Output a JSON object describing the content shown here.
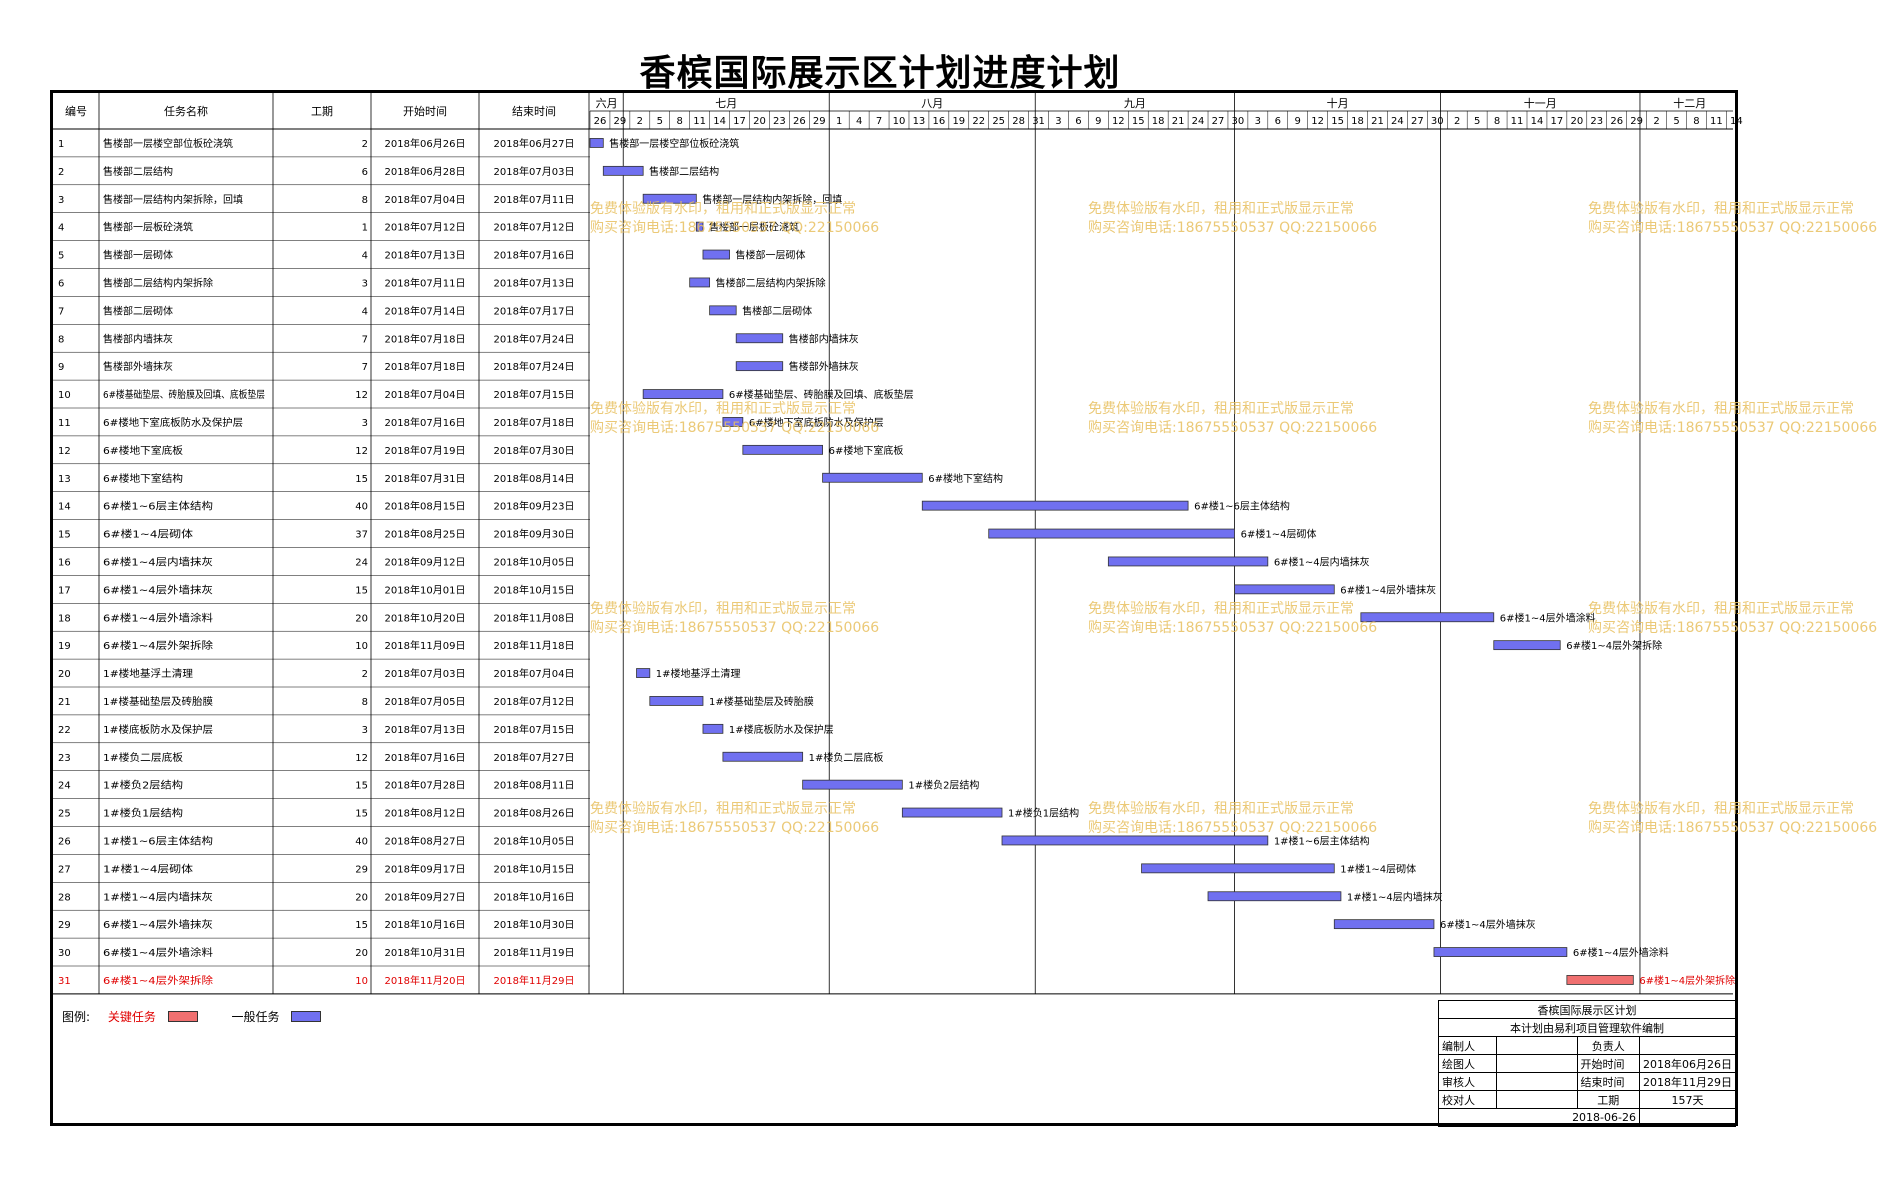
{
  "title": "香槟国际展示区计划进度计划",
  "columns": {
    "id": "编号",
    "name": "任务名称",
    "dur": "工期",
    "start": "开始时间",
    "end": "结束时间"
  },
  "months": [
    {
      "label": "六月",
      "start": "2018-06-26",
      "days": 5
    },
    {
      "label": "七月",
      "start": "2018-07-01",
      "days": 31
    },
    {
      "label": "八月",
      "start": "2018-08-01",
      "days": 31
    },
    {
      "label": "九月",
      "start": "2018-09-01",
      "days": 30
    },
    {
      "label": "十月",
      "start": "2018-10-01",
      "days": 31
    },
    {
      "label": "十一月",
      "start": "2018-11-01",
      "days": 30
    },
    {
      "label": "十二月",
      "start": "2018-12-01",
      "days": 15
    }
  ],
  "day_ticks": [
    26,
    29,
    2,
    5,
    8,
    11,
    14,
    17,
    20,
    23,
    26,
    29,
    1,
    4,
    7,
    10,
    13,
    16,
    19,
    22,
    25,
    28,
    31,
    3,
    6,
    9,
    12,
    15,
    18,
    21,
    24,
    27,
    30,
    3,
    6,
    9,
    12,
    15,
    18,
    21,
    24,
    27,
    30,
    2,
    5,
    8,
    11,
    14,
    17,
    20,
    23,
    26,
    29,
    2,
    5,
    8,
    11,
    14
  ],
  "chart_data": {
    "type": "gantt",
    "title": "香槟国际展示区计划进度计划",
    "x_range": [
      "2018-06-26",
      "2018-12-15"
    ],
    "tasks": [
      {
        "id": "1",
        "name": "售楼部一层楼空部位板砼浇筑",
        "dur": 2,
        "start": "2018年06月26日",
        "end": "2018年06月27日",
        "s": "2018-06-26",
        "e": "2018-06-27",
        "critical": false
      },
      {
        "id": "2",
        "name": "售楼部二层结构",
        "dur": 6,
        "start": "2018年06月28日",
        "end": "2018年07月03日",
        "s": "2018-06-28",
        "e": "2018-07-03",
        "critical": false
      },
      {
        "id": "3",
        "name": "售楼部一层结构内架拆除，回填",
        "dur": 8,
        "start": "2018年07月04日",
        "end": "2018年07月11日",
        "s": "2018-07-04",
        "e": "2018-07-11",
        "critical": false
      },
      {
        "id": "4",
        "name": "售楼部一层板砼浇筑",
        "dur": 1,
        "start": "2018年07月12日",
        "end": "2018年07月12日",
        "s": "2018-07-12",
        "e": "2018-07-12",
        "critical": false
      },
      {
        "id": "5",
        "name": "售楼部一层砌体",
        "dur": 4,
        "start": "2018年07月13日",
        "end": "2018年07月16日",
        "s": "2018-07-13",
        "e": "2018-07-16",
        "critical": false
      },
      {
        "id": "6",
        "name": "售楼部二层结构内架拆除",
        "dur": 3,
        "start": "2018年07月11日",
        "end": "2018年07月13日",
        "s": "2018-07-11",
        "e": "2018-07-13",
        "critical": false
      },
      {
        "id": "7",
        "name": "售楼部二层砌体",
        "dur": 4,
        "start": "2018年07月14日",
        "end": "2018年07月17日",
        "s": "2018-07-14",
        "e": "2018-07-17",
        "critical": false
      },
      {
        "id": "8",
        "name": "售楼部内墙抹灰",
        "dur": 7,
        "start": "2018年07月18日",
        "end": "2018年07月24日",
        "s": "2018-07-18",
        "e": "2018-07-24",
        "critical": false
      },
      {
        "id": "9",
        "name": "售楼部外墙抹灰",
        "dur": 7,
        "start": "2018年07月18日",
        "end": "2018年07月24日",
        "s": "2018-07-18",
        "e": "2018-07-24",
        "critical": false
      },
      {
        "id": "10",
        "name": "6#楼基础垫层、砖胎膜及回填、底板垫层",
        "dur": 12,
        "start": "2018年07月04日",
        "end": "2018年07月15日",
        "s": "2018-07-04",
        "e": "2018-07-15",
        "critical": false
      },
      {
        "id": "11",
        "name": "6#楼地下室底板防水及保护层",
        "dur": 3,
        "start": "2018年07月16日",
        "end": "2018年07月18日",
        "s": "2018-07-16",
        "e": "2018-07-18",
        "critical": false
      },
      {
        "id": "12",
        "name": "6#楼地下室底板",
        "dur": 12,
        "start": "2018年07月19日",
        "end": "2018年07月30日",
        "s": "2018-07-19",
        "e": "2018-07-30",
        "critical": false
      },
      {
        "id": "13",
        "name": "6#楼地下室结构",
        "dur": 15,
        "start": "2018年07月31日",
        "end": "2018年08月14日",
        "s": "2018-07-31",
        "e": "2018-08-14",
        "critical": false
      },
      {
        "id": "14",
        "name": "6#楼1~6层主体结构",
        "dur": 40,
        "start": "2018年08月15日",
        "end": "2018年09月23日",
        "s": "2018-08-15",
        "e": "2018-09-23",
        "critical": false
      },
      {
        "id": "15",
        "name": "6#楼1~4层砌体",
        "dur": 37,
        "start": "2018年08月25日",
        "end": "2018年09月30日",
        "s": "2018-08-25",
        "e": "2018-09-30",
        "critical": false
      },
      {
        "id": "16",
        "name": "6#楼1~4层内墙抹灰",
        "dur": 24,
        "start": "2018年09月12日",
        "end": "2018年10月05日",
        "s": "2018-09-12",
        "e": "2018-10-05",
        "critical": false
      },
      {
        "id": "17",
        "name": "6#楼1~4层外墙抹灰",
        "dur": 15,
        "start": "2018年10月01日",
        "end": "2018年10月15日",
        "s": "2018-10-01",
        "e": "2018-10-15",
        "critical": false
      },
      {
        "id": "18",
        "name": "6#楼1~4层外墙涂料",
        "dur": 20,
        "start": "2018年10月20日",
        "end": "2018年11月08日",
        "s": "2018-10-20",
        "e": "2018-11-08",
        "critical": false
      },
      {
        "id": "19",
        "name": "6#楼1~4层外架拆除",
        "dur": 10,
        "start": "2018年11月09日",
        "end": "2018年11月18日",
        "s": "2018-11-09",
        "e": "2018-11-18",
        "critical": false
      },
      {
        "id": "20",
        "name": "1#楼地基浮土清理",
        "dur": 2,
        "start": "2018年07月03日",
        "end": "2018年07月04日",
        "s": "2018-07-03",
        "e": "2018-07-04",
        "critical": false
      },
      {
        "id": "21",
        "name": "1#楼基础垫层及砖胎膜",
        "dur": 8,
        "start": "2018年07月05日",
        "end": "2018年07月12日",
        "s": "2018-07-05",
        "e": "2018-07-12",
        "critical": false
      },
      {
        "id": "22",
        "name": "1#楼底板防水及保护层",
        "dur": 3,
        "start": "2018年07月13日",
        "end": "2018年07月15日",
        "s": "2018-07-13",
        "e": "2018-07-15",
        "critical": false
      },
      {
        "id": "23",
        "name": "1#楼负二层底板",
        "dur": 12,
        "start": "2018年07月16日",
        "end": "2018年07月27日",
        "s": "2018-07-16",
        "e": "2018-07-27",
        "critical": false
      },
      {
        "id": "24",
        "name": "1#楼负2层结构",
        "dur": 15,
        "start": "2018年07月28日",
        "end": "2018年08月11日",
        "s": "2018-07-28",
        "e": "2018-08-11",
        "critical": false
      },
      {
        "id": "25",
        "name": "1#楼负1层结构",
        "dur": 15,
        "start": "2018年08月12日",
        "end": "2018年08月26日",
        "s": "2018-08-12",
        "e": "2018-08-26",
        "critical": false
      },
      {
        "id": "26",
        "name": "1#楼1~6层主体结构",
        "dur": 40,
        "start": "2018年08月27日",
        "end": "2018年10月05日",
        "s": "2018-08-27",
        "e": "2018-10-05",
        "critical": false
      },
      {
        "id": "27",
        "name": "1#楼1~4层砌体",
        "dur": 29,
        "start": "2018年09月17日",
        "end": "2018年10月15日",
        "s": "2018-09-17",
        "e": "2018-10-15",
        "critical": false
      },
      {
        "id": "28",
        "name": "1#楼1~4层内墙抹灰",
        "dur": 20,
        "start": "2018年09月27日",
        "end": "2018年10月16日",
        "s": "2018-09-27",
        "e": "2018-10-16",
        "critical": false
      },
      {
        "id": "29",
        "name": "6#楼1~4层外墙抹灰",
        "dur": 15,
        "start": "2018年10月16日",
        "end": "2018年10月30日",
        "s": "2018-10-16",
        "e": "2018-10-30",
        "critical": false
      },
      {
        "id": "30",
        "name": "6#楼1~4层外墙涂料",
        "dur": 20,
        "start": "2018年10月31日",
        "end": "2018年11月19日",
        "s": "2018-10-31",
        "e": "2018-11-19",
        "critical": false
      },
      {
        "id": "31",
        "name": "6#楼1~4层外架拆除",
        "dur": 10,
        "start": "2018年11月20日",
        "end": "2018年11月29日",
        "s": "2018-11-20",
        "e": "2018-11-29",
        "critical": true
      }
    ]
  },
  "colors": {
    "normal": "#7070f0",
    "critical": "#f07070",
    "critical_text": "#e00000",
    "watermark": "#e8c060"
  },
  "watermark": {
    "line1": "免费体验版有水印，租用和正式版显示正常",
    "line2": "购买咨询电话:18675550537 QQ:22150066"
  },
  "legend": {
    "label": "图例:",
    "critical": "关键任务",
    "normal": "一般任务"
  },
  "info": {
    "title": "香槟国际展示区计划",
    "subtitle": "本计划由易利项目管理软件编制",
    "prepared": "编制人",
    "owner": "负责人",
    "drawn": "绘图人",
    "start_label": "开始时间",
    "start": "2018年06月26日",
    "reviewed": "审核人",
    "end_label": "结束时间",
    "end": "2018年11月29日",
    "checked": "校对人",
    "dur_label": "工期",
    "dur": "157天",
    "date": "2018-06-26"
  }
}
